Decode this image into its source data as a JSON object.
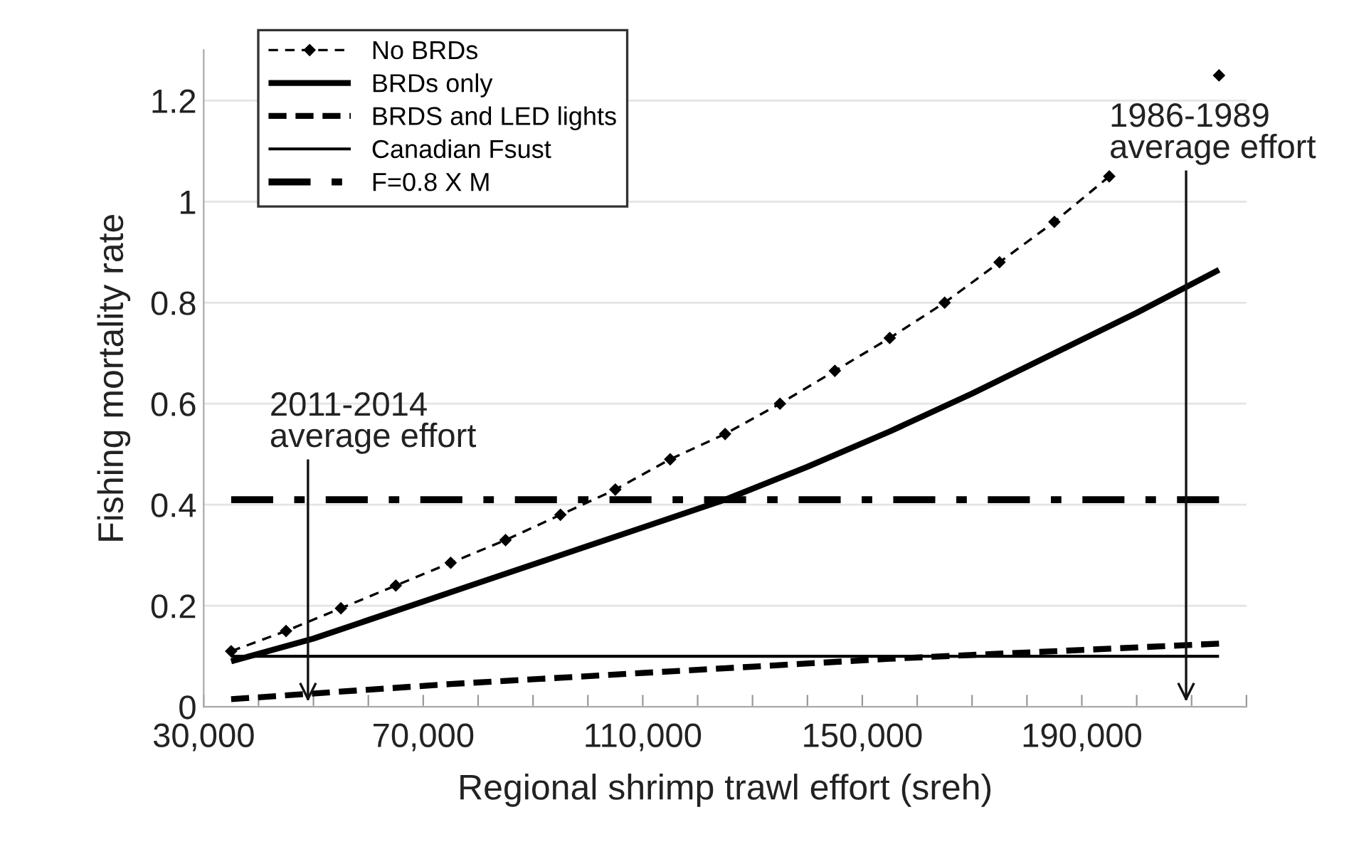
{
  "chart_data": {
    "type": "line",
    "xlabel": "Regional shrimp trawl effort (sreh)",
    "ylabel": "Fishing mortality rate",
    "xlim": [
      30000,
      220000
    ],
    "ylim": [
      0,
      1.3
    ],
    "xticks": [
      {
        "value": 30000,
        "label": "30,000"
      },
      {
        "value": 40000,
        "label": null
      },
      {
        "value": 50000,
        "label": null
      },
      {
        "value": 60000,
        "label": null
      },
      {
        "value": 70000,
        "label": "70,000"
      },
      {
        "value": 80000,
        "label": null
      },
      {
        "value": 90000,
        "label": null
      },
      {
        "value": 100000,
        "label": null
      },
      {
        "value": 110000,
        "label": "110,000"
      },
      {
        "value": 120000,
        "label": null
      },
      {
        "value": 130000,
        "label": null
      },
      {
        "value": 140000,
        "label": null
      },
      {
        "value": 150000,
        "label": "150,000"
      },
      {
        "value": 160000,
        "label": null
      },
      {
        "value": 170000,
        "label": null
      },
      {
        "value": 180000,
        "label": null
      },
      {
        "value": 190000,
        "label": "190,000"
      },
      {
        "value": 200000,
        "label": null
      },
      {
        "value": 210000,
        "label": null
      },
      {
        "value": 220000,
        "label": null
      }
    ],
    "yticks": [
      0,
      0.2,
      0.4,
      0.6,
      0.8,
      1,
      1.2
    ],
    "grid": "y",
    "legend": "top left",
    "series": [
      {
        "name": "No BRDs",
        "color": "#000000",
        "line_style": "dashed",
        "marker": "diamond",
        "x": [
          35000,
          45000,
          55000,
          65000,
          75000,
          85000,
          95000,
          105000,
          115000,
          125000,
          135000,
          145000,
          155000,
          165000,
          175000,
          185000,
          195000,
          205000,
          215000
        ],
        "values": [
          0.11,
          0.15,
          0.195,
          0.24,
          0.285,
          0.33,
          0.38,
          0.43,
          0.49,
          0.54,
          0.6,
          0.665,
          0.73,
          0.8,
          0.88,
          0.96,
          1.05,
          null,
          1.25
        ]
      },
      {
        "name": "BRDs only",
        "color": "#000000",
        "line_style": "solid",
        "marker": "none",
        "x": [
          35000,
          50000,
          65000,
          80000,
          95000,
          110000,
          125000,
          140000,
          155000,
          170000,
          185000,
          200000,
          215000
        ],
        "values": [
          0.09,
          0.135,
          0.19,
          0.245,
          0.3,
          0.355,
          0.41,
          0.475,
          0.545,
          0.62,
          0.7,
          0.78,
          0.865
        ]
      },
      {
        "name": "BRDS and LED lights",
        "color": "#000000",
        "line_style": "dashed",
        "marker": "none",
        "x": [
          35000,
          75000,
          115000,
          155000,
          215000
        ],
        "values": [
          0.015,
          0.045,
          0.07,
          0.095,
          0.125
        ]
      },
      {
        "name": "Canadian Fsust",
        "color": "#000000",
        "line_style": "solid",
        "marker": "none",
        "x": [
          35000,
          215000
        ],
        "values": [
          0.1,
          0.1
        ]
      },
      {
        "name": "F=0.8 X M",
        "color": "#000000",
        "line_style": "dashdot",
        "marker": "none",
        "x": [
          35000,
          215000
        ],
        "values": [
          0.41,
          0.41
        ]
      }
    ],
    "ref_lines": [
      {
        "axis": "x",
        "value": 49000,
        "label": "2011-2014\naverage effort"
      },
      {
        "axis": "x",
        "value": 209000,
        "label": "1986-1989\naverage effort"
      }
    ]
  }
}
